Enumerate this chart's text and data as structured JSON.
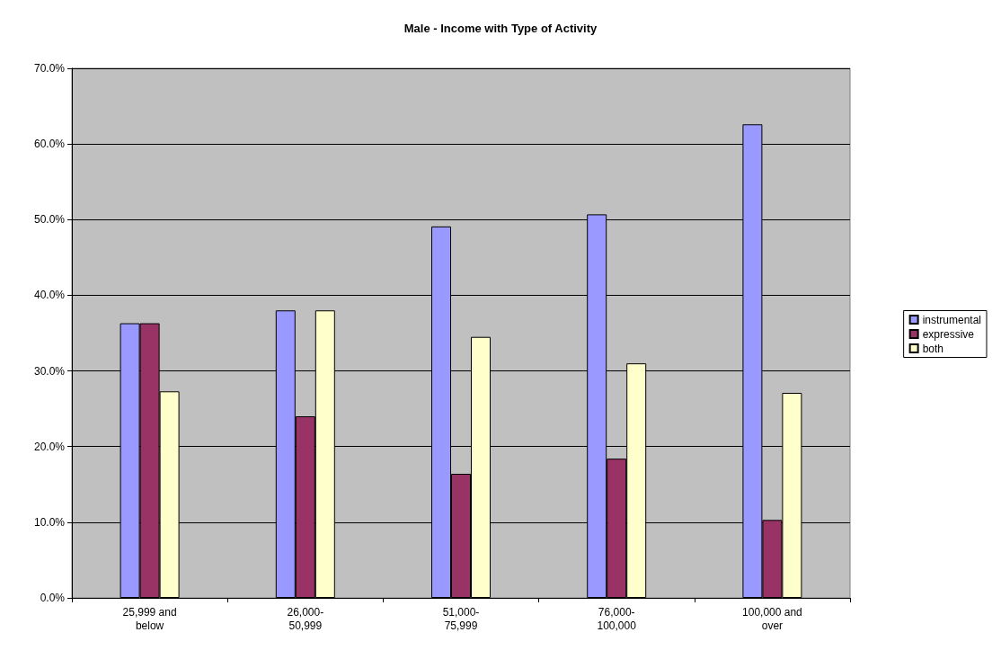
{
  "chart_data": {
    "type": "bar",
    "title": "Male - Income with Type of Activity",
    "categories": [
      "25,999 and\nbelow",
      "26,000-\n50,999",
      "51,000-\n75,999",
      "76,000-\n100,000",
      "100,000 and\nover"
    ],
    "series": [
      {
        "name": "instrumental",
        "color": "#9999ff",
        "values": [
          36.3,
          38.0,
          49.1,
          50.7,
          62.6
        ]
      },
      {
        "name": "expressive",
        "color": "#993366",
        "values": [
          36.3,
          24.0,
          16.4,
          18.4,
          10.3
        ]
      },
      {
        "name": "both",
        "color": "#ffffcc",
        "values": [
          27.3,
          38.0,
          34.5,
          31.0,
          27.1
        ]
      }
    ],
    "ylim": [
      0,
      70
    ],
    "yticks": [
      {
        "value": 0,
        "label": "0.0%"
      },
      {
        "value": 10,
        "label": "10.0%"
      },
      {
        "value": 20,
        "label": "20.0%"
      },
      {
        "value": 30,
        "label": "30.0%"
      },
      {
        "value": 40,
        "label": "40.0%"
      },
      {
        "value": 50,
        "label": "50.0%"
      },
      {
        "value": 60,
        "label": "60.0%"
      },
      {
        "value": 70,
        "label": "70.0%"
      }
    ],
    "grid": "y",
    "legend": "right"
  }
}
